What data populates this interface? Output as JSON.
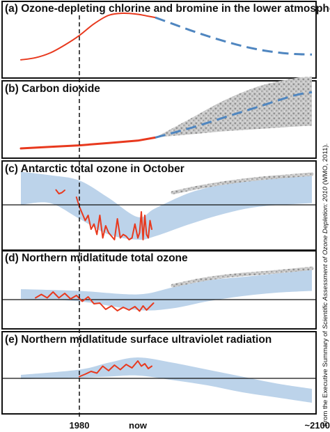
{
  "credit": {
    "prefix": "From the Executive Summary of ",
    "source": "Scientific Assessment of Ozone Depletion: 2010",
    "suffix": " (WMO, 2011)."
  },
  "colors": {
    "observed": "#e8391e",
    "projected": "#4f86c0",
    "band": "#bcd3ea",
    "uncertainty": "#b9b9b9",
    "frame": "#111111"
  },
  "chart_data": [
    {
      "type": "line",
      "title": "(a) Ozone-depleting chlorine and bromine in the lower atmosphere",
      "x_tick_labels": [
        "1980",
        "now",
        "~2100"
      ],
      "x": [
        1960,
        1980,
        1990,
        2000,
        2100
      ],
      "series": [
        {
          "kind": "observed",
          "x": [
            1960,
            1965,
            1970,
            1975,
            1980,
            1985,
            1990,
            1995,
            2000,
            2005,
            2010
          ],
          "y": [
            0.12,
            0.16,
            0.25,
            0.4,
            0.58,
            0.8,
            0.96,
            1.0,
            0.98,
            0.95,
            0.92
          ]
        },
        {
          "kind": "projected",
          "x": [
            2010,
            2020,
            2030,
            2040,
            2050,
            2060,
            2070,
            2080,
            2090,
            2100
          ],
          "y": [
            0.92,
            0.8,
            0.68,
            0.57,
            0.47,
            0.38,
            0.31,
            0.26,
            0.23,
            0.22
          ]
        }
      ]
    },
    {
      "type": "line",
      "title": "(b) Carbon dioxide",
      "x": [
        1960,
        1980,
        1990,
        2000,
        2100
      ],
      "series": [
        {
          "kind": "observed",
          "x": [
            1960,
            1970,
            1980,
            1990,
            2000,
            2010
          ],
          "y": [
            0.08,
            0.1,
            0.12,
            0.15,
            0.18,
            0.22
          ]
        },
        {
          "kind": "projected",
          "x": [
            2010,
            2030,
            2050,
            2070,
            2090,
            2100
          ],
          "y": [
            0.22,
            0.34,
            0.48,
            0.62,
            0.76,
            0.8
          ]
        }
      ],
      "uncertainty_range": {
        "x": [
          2010,
          2030,
          2050,
          2070,
          2090,
          2100
        ],
        "low": [
          0.22,
          0.26,
          0.3,
          0.33,
          0.36,
          0.37
        ],
        "high": [
          0.22,
          0.46,
          0.7,
          0.88,
          0.98,
          1.0
        ]
      }
    },
    {
      "type": "line",
      "title": "(c) Antarctic total ozone in October",
      "x": [
        1960,
        1980,
        1990,
        2000,
        2100
      ],
      "reference_line": 0,
      "series": [
        {
          "kind": "observed",
          "x": [
            1972,
            1973,
            1974,
            1975
          ],
          "y": [
            0.43,
            0.32,
            0.35,
            0.42
          ]
        },
        {
          "kind": "observed",
          "x": [
            1979,
            1980,
            1981,
            1982,
            1983,
            1984,
            1985,
            1986,
            1987,
            1988,
            1989,
            1990,
            1991,
            1992,
            1993,
            1994,
            1995,
            1996,
            1997,
            1998,
            1999,
            2000,
            2001,
            2002,
            2003,
            2004,
            2005,
            2006,
            2007,
            2008
          ],
          "y": [
            0.22,
            -0.05,
            -0.25,
            -0.45,
            -0.3,
            -0.7,
            -0.55,
            -0.85,
            -0.3,
            -0.95,
            -0.6,
            -0.8,
            -0.9,
            -1.0,
            -0.4,
            -0.95,
            -0.85,
            -0.9,
            -1.0,
            -0.95,
            -0.55,
            -0.95,
            -0.8,
            -0.2,
            -1.0,
            -0.3,
            -0.85,
            -0.95,
            -0.45,
            -0.7
          ]
        }
      ],
      "band": {
        "x": [
          1960,
          1970,
          1980,
          1990,
          2000,
          2010,
          2030,
          2050,
          2070,
          2100
        ],
        "low": [
          0.0,
          0.05,
          -0.4,
          -0.85,
          -1.0,
          -0.9,
          -0.55,
          -0.25,
          -0.05,
          0.05
        ],
        "high": [
          0.95,
          0.85,
          0.7,
          0.2,
          -0.35,
          -0.1,
          0.35,
          0.6,
          0.75,
          0.85
        ]
      },
      "uncertainty_edge": {
        "x": [
          2020,
          2040,
          2060,
          2080,
          2100
        ],
        "y": [
          0.35,
          0.55,
          0.7,
          0.8,
          0.88
        ]
      }
    },
    {
      "type": "line",
      "title": "(d) Northern midlatitude total ozone",
      "x": [
        1960,
        1980,
        1990,
        2000,
        2100
      ],
      "reference_line": 0,
      "series": [
        {
          "kind": "observed",
          "x": [
            1965,
            1967,
            1969,
            1971,
            1973,
            1975,
            1977,
            1979,
            1981,
            1983,
            1985,
            1987,
            1989,
            1991,
            1993,
            1995,
            1997,
            1999,
            2001,
            2003,
            2005,
            2007,
            2009
          ],
          "y": [
            0.05,
            0.15,
            0.05,
            0.22,
            0.05,
            0.18,
            0.02,
            0.12,
            -0.05,
            0.08,
            -0.12,
            -0.1,
            -0.28,
            -0.18,
            -0.32,
            -0.22,
            -0.3,
            -0.2,
            -0.33,
            -0.18,
            -0.3,
            -0.2,
            -0.1
          ]
        }
      ],
      "band": {
        "x": [
          1960,
          1980,
          2000,
          2020,
          2040,
          2060,
          2080,
          2100
        ],
        "low": [
          0.02,
          -0.05,
          -0.3,
          -0.25,
          -0.05,
          0.1,
          0.2,
          0.25
        ],
        "high": [
          0.3,
          0.25,
          0.15,
          0.35,
          0.55,
          0.65,
          0.75,
          0.85
        ]
      },
      "uncertainty_edge": {
        "x": [
          2020,
          2040,
          2060,
          2080,
          2100
        ],
        "y": [
          0.4,
          0.6,
          0.72,
          0.8,
          0.9
        ]
      }
    },
    {
      "type": "line",
      "title": "(e) Northern midlatitude surface ultraviolet radiation",
      "x": [
        1960,
        1980,
        1990,
        2000,
        2100
      ],
      "reference_line": 0,
      "series": [
        {
          "kind": "observed",
          "x": [
            1980,
            1982,
            1984,
            1986,
            1988,
            1990,
            1992,
            1994,
            1996,
            1998,
            2000,
            2002,
            2004,
            2006,
            2008
          ],
          "y": [
            0.05,
            0.12,
            0.2,
            0.15,
            0.35,
            0.22,
            0.38,
            0.25,
            0.4,
            0.3,
            0.5,
            0.35,
            0.42,
            0.28,
            0.35
          ]
        }
      ],
      "band": {
        "x": [
          1960,
          1980,
          1990,
          2000,
          2020,
          2040,
          2060,
          2080,
          2100
        ],
        "low": [
          -0.02,
          0.02,
          0.05,
          0.08,
          -0.05,
          -0.2,
          -0.4,
          -0.55,
          -0.7
        ],
        "high": [
          0.1,
          0.25,
          0.45,
          0.6,
          0.45,
          0.25,
          0.05,
          -0.15,
          -0.3
        ]
      }
    }
  ]
}
